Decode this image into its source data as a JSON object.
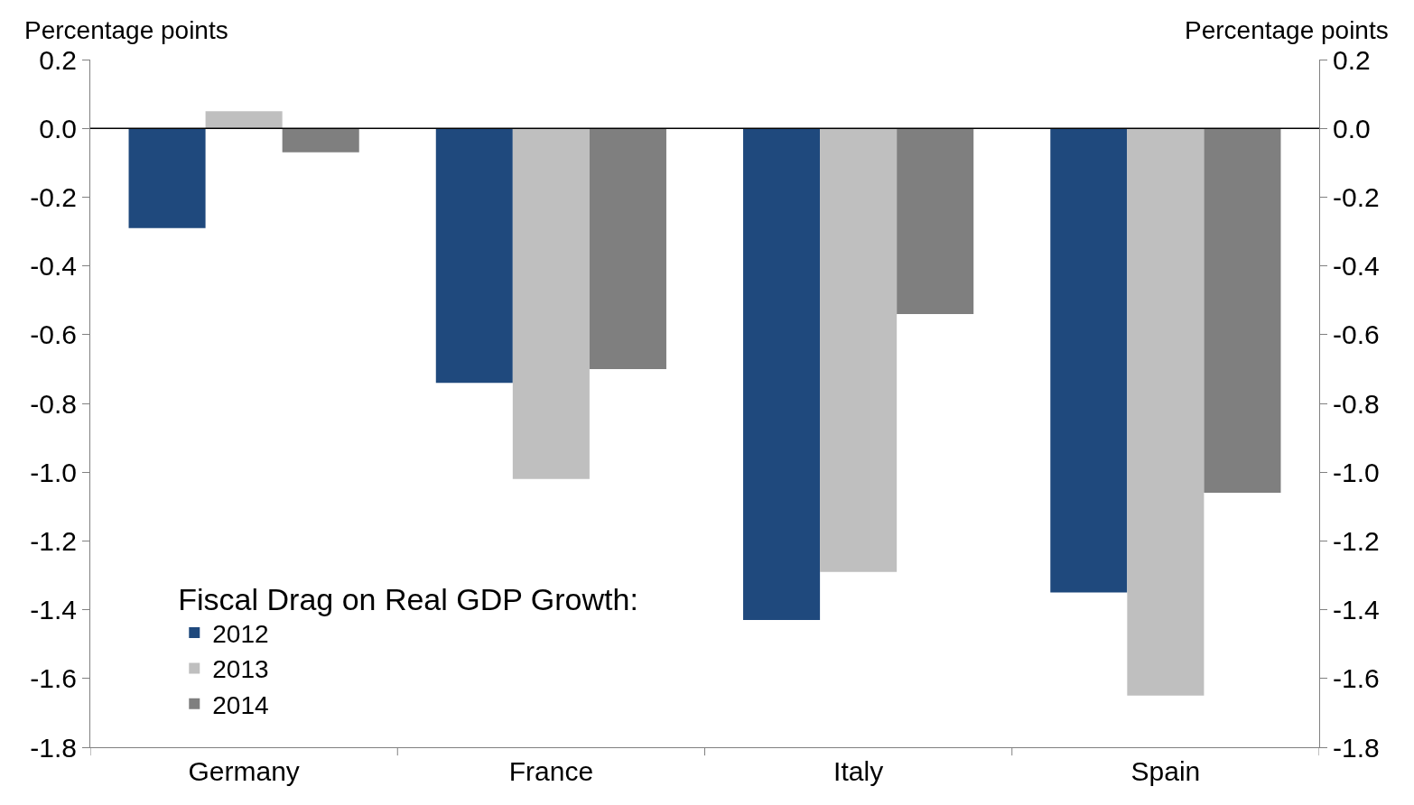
{
  "chart_data": {
    "type": "bar",
    "ylabel": "Percentage points",
    "y2label": "Percentage points",
    "legend_title": "Fiscal Drag on Real GDP Growth:",
    "categories": [
      "Germany",
      "France",
      "Italy",
      "Spain"
    ],
    "series": [
      {
        "name": "2012",
        "color": "#1f497d",
        "values": [
          -0.29,
          -0.74,
          -1.43,
          -1.35
        ]
      },
      {
        "name": "2013",
        "color": "#bfbfbf",
        "values": [
          0.05,
          -1.02,
          -1.29,
          -1.65
        ]
      },
      {
        "name": "2014",
        "color": "#7f7f7f",
        "values": [
          -0.07,
          -0.7,
          -0.54,
          -1.06
        ]
      }
    ],
    "ylim": [
      -1.8,
      0.2
    ],
    "yticks": [
      {
        "value": 0.2,
        "label": "0.2"
      },
      {
        "value": 0.0,
        "label": "0.0"
      },
      {
        "value": -0.2,
        "label": "-0.2"
      },
      {
        "value": -0.4,
        "label": "-0.4"
      },
      {
        "value": -0.6,
        "label": "-0.6"
      },
      {
        "value": -0.8,
        "label": "-0.8"
      },
      {
        "value": -1.0,
        "label": "-1.0"
      },
      {
        "value": -1.2,
        "label": "-1.2"
      },
      {
        "value": -1.4,
        "label": "-1.4"
      },
      {
        "value": -1.6,
        "label": "-1.6"
      },
      {
        "value": -1.8,
        "label": "-1.8"
      }
    ],
    "y2lim": [
      -1.8,
      0.2
    ],
    "y2ticks": [
      {
        "value": 0.2,
        "label": "0.2"
      },
      {
        "value": 0.0,
        "label": "0.0"
      },
      {
        "value": -0.2,
        "label": "-0.2"
      },
      {
        "value": -0.4,
        "label": "-0.4"
      },
      {
        "value": -0.6,
        "label": "-0.6"
      },
      {
        "value": -0.8,
        "label": "-0.8"
      },
      {
        "value": -1.0,
        "label": "-1.0"
      },
      {
        "value": -1.2,
        "label": "-1.2"
      },
      {
        "value": -1.4,
        "label": "-1.4"
      },
      {
        "value": -1.6,
        "label": "-1.6"
      },
      {
        "value": -1.8,
        "label": "-1.8"
      }
    ],
    "ref_lines": [
      {
        "axis": "y",
        "value": 0.0,
        "color": "#000000"
      }
    ],
    "grid": false,
    "legend": "bottom left"
  }
}
